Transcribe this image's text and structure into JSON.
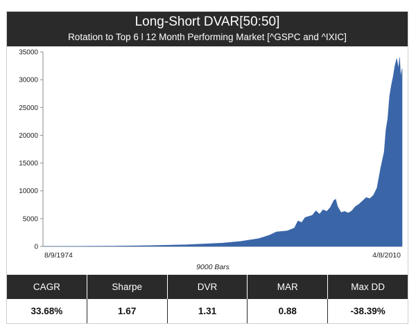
{
  "header": {
    "title": "Long-Short DVAR[50:50]",
    "subtitle": "Rotation to Top 6 l 12 Month Performing Market [^GSPC and ^IXIC]"
  },
  "chart_data": {
    "type": "area",
    "xlabel": "9000 Bars",
    "x_tick_labels": [
      "8/9/1974",
      "4/8/2010"
    ],
    "y_ticks": [
      0,
      5000,
      10000,
      15000,
      20000,
      25000,
      30000,
      35000
    ],
    "ylim": [
      0,
      35000
    ],
    "series": [
      {
        "color": "#3a66a8",
        "points": [
          [
            0,
            0
          ],
          [
            0.1,
            20
          ],
          [
            0.2,
            60
          ],
          [
            0.3,
            150
          ],
          [
            0.4,
            300
          ],
          [
            0.45,
            450
          ],
          [
            0.5,
            600
          ],
          [
            0.55,
            900
          ],
          [
            0.6,
            1400
          ],
          [
            0.63,
            2000
          ],
          [
            0.65,
            2600
          ],
          [
            0.68,
            2800
          ],
          [
            0.7,
            3300
          ],
          [
            0.71,
            4600
          ],
          [
            0.72,
            4300
          ],
          [
            0.73,
            5200
          ],
          [
            0.75,
            5600
          ],
          [
            0.76,
            6400
          ],
          [
            0.77,
            5800
          ],
          [
            0.78,
            6600
          ],
          [
            0.79,
            6300
          ],
          [
            0.8,
            7000
          ],
          [
            0.81,
            8300
          ],
          [
            0.815,
            8500
          ],
          [
            0.82,
            7200
          ],
          [
            0.83,
            6100
          ],
          [
            0.84,
            6300
          ],
          [
            0.85,
            6000
          ],
          [
            0.86,
            6400
          ],
          [
            0.87,
            7200
          ],
          [
            0.88,
            7600
          ],
          [
            0.89,
            8200
          ],
          [
            0.9,
            8800
          ],
          [
            0.91,
            8600
          ],
          [
            0.92,
            9200
          ],
          [
            0.93,
            10500
          ],
          [
            0.94,
            14000
          ],
          [
            0.95,
            17000
          ],
          [
            0.955,
            21000
          ],
          [
            0.96,
            23000
          ],
          [
            0.965,
            27000
          ],
          [
            0.97,
            29000
          ],
          [
            0.975,
            30500
          ],
          [
            0.98,
            32500
          ],
          [
            0.985,
            33800
          ],
          [
            0.99,
            32000
          ],
          [
            0.993,
            34000
          ],
          [
            0.996,
            30500
          ],
          [
            1.0,
            32000
          ]
        ]
      }
    ]
  },
  "metrics": [
    {
      "label": "CAGR",
      "value": "33.68%"
    },
    {
      "label": "Sharpe",
      "value": "1.67"
    },
    {
      "label": "DVR",
      "value": "1.31"
    },
    {
      "label": "MAR",
      "value": "0.88"
    },
    {
      "label": "Max DD",
      "value": "-38.39%"
    }
  ]
}
